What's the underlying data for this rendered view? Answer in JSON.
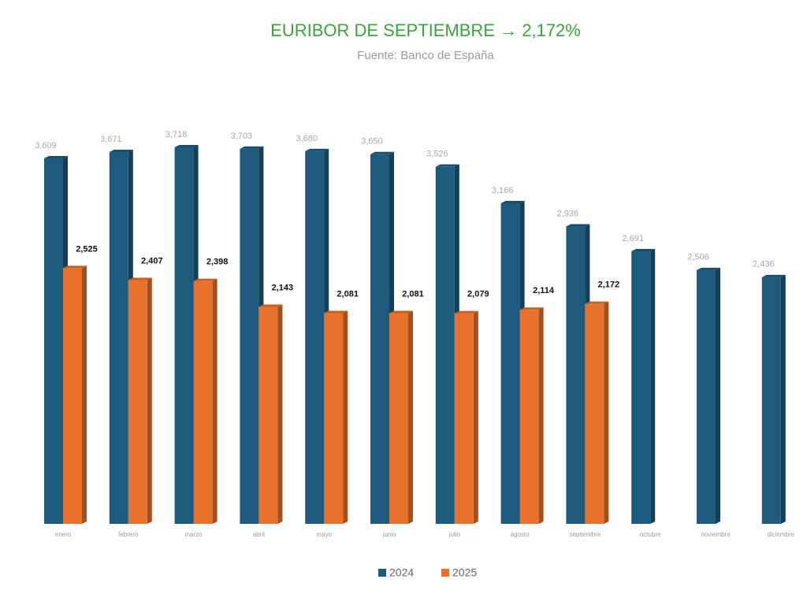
{
  "chart_data": {
    "type": "bar",
    "title": "EURIBOR DE SEPTIEMBRE → 2,172%",
    "subtitle": "Fuente: Banco de España",
    "categories": [
      "enero",
      "febrero",
      "marzo",
      "abril",
      "mayo",
      "junio",
      "julio",
      "agosto",
      "septiembre",
      "octubre",
      "noviembre",
      "diciembre"
    ],
    "series": [
      {
        "name": "2024",
        "color": "#1d5a7e",
        "values": [
          3.609,
          3.671,
          3.718,
          3.703,
          3.68,
          3.65,
          3.526,
          3.166,
          2.936,
          2.691,
          2.506,
          2.436
        ],
        "value_labels": [
          "3,609",
          "3,671",
          "3,718",
          "3,703",
          "3,680",
          "3,650",
          "3,526",
          "3,166",
          "2,936",
          "2,691",
          "2,506",
          "2,436"
        ]
      },
      {
        "name": "2025",
        "color": "#e8722c",
        "values": [
          2.525,
          2.407,
          2.398,
          2.143,
          2.081,
          2.081,
          2.079,
          2.114,
          2.172,
          null,
          null,
          null
        ],
        "value_labels": [
          "2,525",
          "2,407",
          "2,398",
          "2,143",
          "2,081",
          "2,081",
          "2,079",
          "2,114",
          "2,172",
          null,
          null,
          null
        ]
      }
    ],
    "legend": "bottom"
  }
}
